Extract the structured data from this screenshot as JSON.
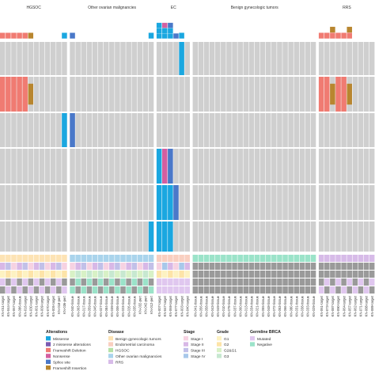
{
  "groups": [
    {
      "label": "HGSOC",
      "n": 12
    },
    {
      "label": "Other ovarian malignancies",
      "n": 15
    },
    {
      "label": "EC",
      "n": 6
    },
    {
      "label": "Benign gynecologic tumors",
      "n": 22
    },
    {
      "label": "RRS",
      "n": 10
    }
  ],
  "colors": {
    "cell_bg": "#cfcfcf",
    "grid": "#ffffff",
    "missense": "#1aa7e0",
    "two_missense": "#7b5bb2",
    "frameshift_deletion": "#f07b72",
    "nonsense": "#d45fa0",
    "splice_site": "#4a78c9",
    "frameshift_insertion": "#b8862f",
    "disease_hgsoc": "#b6e1a6",
    "disease_benign": "#fde3b4",
    "disease_endometrial": "#f9cfc0",
    "disease_other_ovarian": "#aad4ec",
    "disease_rrs": "#d7bbe8",
    "stage_1": "#f6d2e2",
    "stage_2": "#d8b8e6",
    "stage_3": "#c2c0e8",
    "stage_4": "#a8c8ea",
    "grade_g1": "#fdf2c2",
    "grade_g2": "#fde4a8",
    "grade_g2g1": "#d8f1c6",
    "grade_g3": "#c7e8d0",
    "brca_mutated": "#e0c7ef",
    "brca_negative": "#9be3c9",
    "na": "#9a9a9a"
  },
  "sample_labels": [
    "KN-011-target",
    "KN-044-target",
    "KN-067-target",
    "KN-086-tissue",
    "KN-016-target",
    "KN-030-target",
    "KN-001-target",
    "KN-009-target",
    "KN-070-target",
    "KN-005-target",
    "KN-018-pert",
    "KN-036-pert",
    "KN-040-tissue",
    "KN-063-tissue",
    "KN-017-tissue",
    "KN-059-tissue",
    "KN-045-tissue",
    "KN-027-tissue",
    "KN-084-tissue",
    "KN-039-tissue",
    "KN-006-tissue",
    "KN-023-tissue",
    "KN-026-tissue",
    "KN-035-tissue",
    "KN-032-pert",
    "KN-042-pert",
    "KN-012-pert",
    "KN-007-target",
    "KN-047-target",
    "KN-069-target",
    "KN-077-target",
    "KN-003-target",
    "KN-040-target",
    "KN-041-tissue",
    "KN-056-tissue",
    "KN-058-tissue",
    "KN-043-tissue",
    "KN-049-tissue",
    "KN-010-tissue",
    "KN-079-tissue",
    "KN-037-tissue",
    "KN-060-tissue",
    "KN-013-tissue",
    "KN-034-tissue",
    "KN-021-tissue",
    "KN-055-tissue",
    "KN-048-tissue",
    "KN-072-tissue",
    "KN-053-tissue",
    "KN-066-tissue",
    "KN-080-tissue",
    "KN-031-tissue",
    "KN-038-tissue",
    "KN-033-tissue",
    "KN-029-tissue",
    "KN-061-target",
    "KN-073-target",
    "KN-087-target",
    "KN-090-target",
    "KN-064-target",
    "KN-057-target",
    "KN-062-target",
    "KN-071-target",
    "KN-088-target",
    "KN-089-target"
  ],
  "legend": {
    "alterations": {
      "title": "Alterations",
      "items": [
        {
          "label": "Missense",
          "key": "missense"
        },
        {
          "label": "2 missense alterations",
          "key": "two_missense"
        },
        {
          "label": "Frameshift Deletion",
          "key": "frameshift_deletion"
        },
        {
          "label": "Nonsense",
          "key": "nonsense"
        },
        {
          "label": "Splice site",
          "key": "splice_site"
        },
        {
          "label": "Frameshift Insertion",
          "key": "frameshift_insertion"
        }
      ]
    },
    "disease": {
      "title": "Disease",
      "items": [
        {
          "label": "Benign gynecologic tumors",
          "key": "disease_benign"
        },
        {
          "label": "Endometrial carcinoma",
          "key": "disease_endometrial"
        },
        {
          "label": "HGSOC",
          "key": "disease_hgsoc"
        },
        {
          "label": "Other ovarian malignancies",
          "key": "disease_other_ovarian"
        },
        {
          "label": "RRS",
          "key": "disease_rrs"
        }
      ]
    },
    "stage": {
      "title": "Stage",
      "items": [
        {
          "label": "Stage I",
          "key": "stage_1"
        },
        {
          "label": "Stage II",
          "key": "stage_2"
        },
        {
          "label": "Stage III",
          "key": "stage_3"
        },
        {
          "label": "Stage IV",
          "key": "stage_4"
        }
      ]
    },
    "grade": {
      "title": "Grade",
      "items": [
        {
          "label": "G1",
          "key": "grade_g1"
        },
        {
          "label": "G2",
          "key": "grade_g2"
        },
        {
          "label": "G2&G1",
          "key": "grade_g2g1"
        },
        {
          "label": "G3",
          "key": "grade_g3"
        }
      ]
    },
    "brca": {
      "title": "Germline BRCA",
      "items": [
        {
          "label": "Mutated",
          "key": "brca_mutated"
        },
        {
          "label": "Negative",
          "key": "brca_negative"
        }
      ]
    }
  }
}
